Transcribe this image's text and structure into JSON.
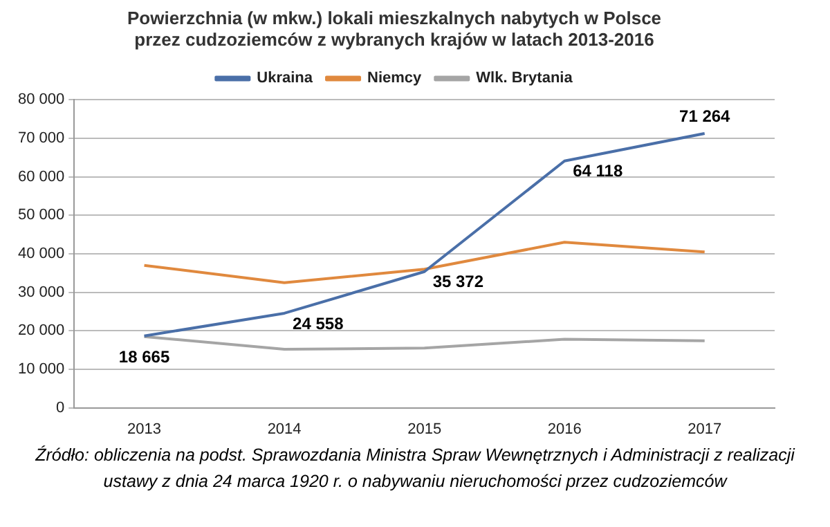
{
  "chart_data": {
    "type": "line",
    "title": "Powierzchnia (w mkw.) lokali mieszkalnych nabytych w Polsce\nprzez cudzoziemców z wybranych krajów w latach 2013-2016",
    "categories": [
      "2013",
      "2014",
      "2015",
      "2016",
      "2017"
    ],
    "series": [
      {
        "name": "Ukraina",
        "color": "#4a6fa8",
        "values": [
          18665,
          24558,
          35372,
          64118,
          71264
        ],
        "value_labels": [
          "18 665",
          "24 558",
          "35 372",
          "64 118",
          "71 264"
        ]
      },
      {
        "name": "Niemcy",
        "color": "#e0893e",
        "values": [
          37000,
          32500,
          36000,
          43000,
          40500
        ]
      },
      {
        "name": "Wlk. Brytania",
        "color": "#a5a5a5",
        "values": [
          18500,
          15200,
          15500,
          17800,
          17400
        ]
      }
    ],
    "ylim": [
      0,
      80000
    ],
    "yticks": [
      {
        "value": 0,
        "label": "0"
      },
      {
        "value": 10000,
        "label": "10 000"
      },
      {
        "value": 20000,
        "label": "20 000"
      },
      {
        "value": 30000,
        "label": "30 000"
      },
      {
        "value": 40000,
        "label": "40 000"
      },
      {
        "value": 50000,
        "label": "50 000"
      },
      {
        "value": 60000,
        "label": "60 000"
      },
      {
        "value": 70000,
        "label": "70 000"
      },
      {
        "value": 80000,
        "label": "80 000"
      }
    ],
    "grid": "y",
    "legend": "top",
    "marker": "none",
    "line_style": "solid",
    "annotations": [
      "Źródło: obliczenia na podst. Sprawozdania Ministra Spraw Wewnętrznych i Administracji z realizacji ustawy z dnia 24 marca 1920 r. o nabywaniu nieruchomości przez cudzoziemców"
    ]
  }
}
